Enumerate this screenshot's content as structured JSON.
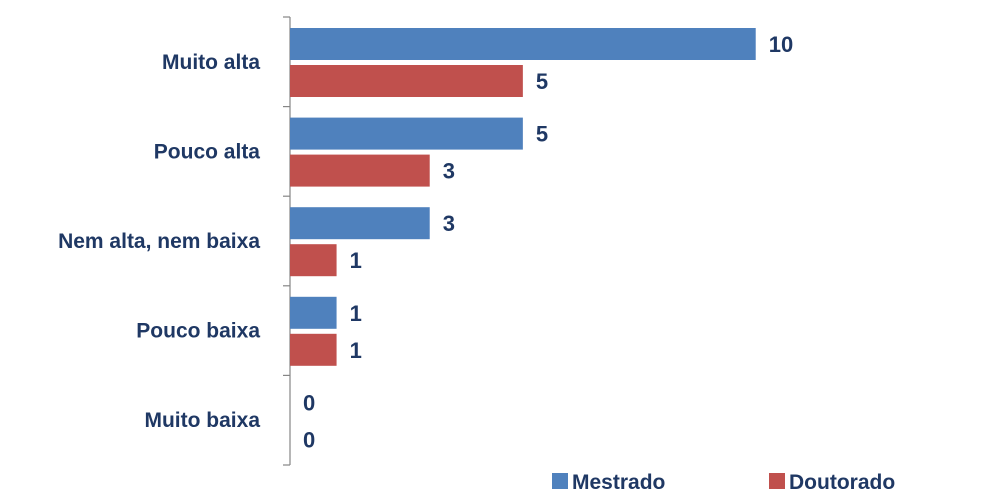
{
  "chart_data": {
    "type": "bar",
    "orientation": "horizontal",
    "categories": [
      "Muito alta",
      "Pouco alta",
      "Nem alta, nem baixa",
      "Pouco baixa",
      "Muito baixa"
    ],
    "series": [
      {
        "name": "Mestrado",
        "values": [
          10,
          5,
          3,
          1,
          0
        ],
        "color": "#4F81BD"
      },
      {
        "name": "Doutorado",
        "values": [
          5,
          3,
          1,
          1,
          0
        ],
        "color": "#C0504D"
      }
    ],
    "title": "",
    "xlabel": "",
    "ylabel": "",
    "xlim": [
      0,
      14
    ],
    "grid": false,
    "legend_position": "bottom-right",
    "data_labels": true
  }
}
